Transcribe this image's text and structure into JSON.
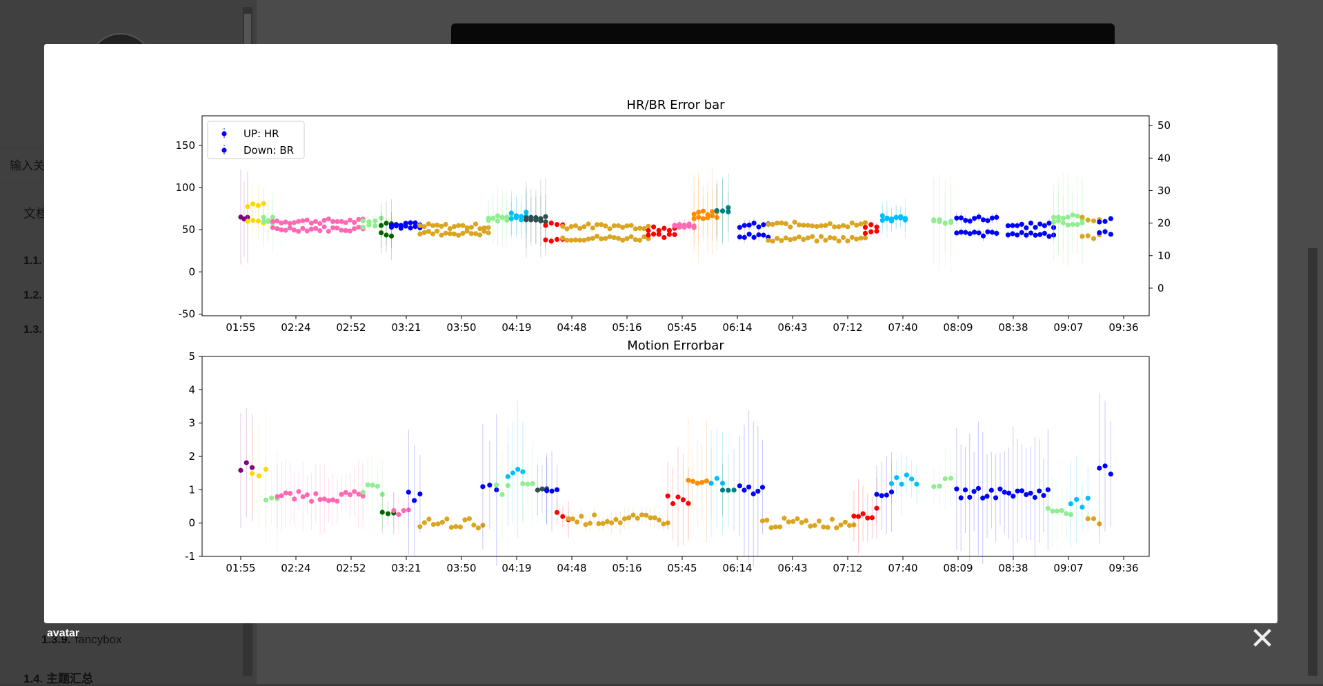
{
  "background": {
    "search_placeholder": "输入关",
    "doc_label": "文档",
    "toc": [
      {
        "label": "1.1."
      },
      {
        "label": "1.2."
      },
      {
        "label": "1.3."
      }
    ],
    "subitem": {
      "num": "1.3.9.",
      "label": "fancybox"
    },
    "bottom_item": {
      "num": "1.4.",
      "label": "主题汇总"
    }
  },
  "lightbox": {
    "caption": "avatar",
    "close_label": "✕"
  },
  "chart_data": [
    {
      "type": "scatter",
      "title": "HR/BR Error bar",
      "x_ticks": [
        "01:55",
        "02:24",
        "02:52",
        "03:21",
        "03:50",
        "04:19",
        "04:48",
        "05:16",
        "05:45",
        "06:14",
        "06:43",
        "07:12",
        "07:40",
        "08:09",
        "08:38",
        "09:07",
        "09:36"
      ],
      "y_ticks": [
        -50,
        0,
        50,
        100,
        150
      ],
      "y2_ticks": [
        0,
        10,
        20,
        30,
        40,
        50
      ],
      "ylim": [
        -52,
        185
      ],
      "y2lim": [
        -8.5,
        53
      ],
      "legend": {
        "position": "upper-left",
        "entries": [
          "UP: HR",
          "Down: BR"
        ]
      },
      "series_colors": [
        "#800080",
        "#ffd700",
        "#90ee90",
        "#ff69b4",
        "#006400",
        "#0000ff",
        "#daa520",
        "#00bfff",
        "#2f4f4f",
        "#ff0000",
        "#ff8c00",
        "#008080"
      ],
      "segments": [
        {
          "x": [
            1.98,
            2.04
          ],
          "hr": 65,
          "br": null,
          "color": "#800080",
          "err": 60
        },
        {
          "x": [
            2.04,
            2.18
          ],
          "hr": 80,
          "br": 60,
          "color": "#ffd700",
          "err": 25
        },
        {
          "x": [
            2.18,
            2.26
          ],
          "hr": 62,
          "br": 60,
          "color": "#90ee90",
          "err": 30
        },
        {
          "x": [
            2.26,
            3.05
          ],
          "hr": 60,
          "br": 51,
          "color": "#ff69b4",
          "err": 3
        },
        {
          "x": [
            3.05,
            3.21
          ],
          "hr": 62,
          "br": 55,
          "color": "#90ee90",
          "err": 12
        },
        {
          "x": [
            3.21,
            3.3
          ],
          "hr": 58,
          "br": 45,
          "color": "#006400",
          "err": 25
        },
        {
          "x": [
            3.3,
            3.55
          ],
          "hr": 58,
          "br": 52,
          "color": "#0000ff",
          "err": 4
        },
        {
          "x": [
            3.55,
            4.15
          ],
          "hr": 54,
          "br": 46,
          "color": "#daa520",
          "err": 3
        },
        {
          "x": [
            4.15,
            4.35
          ],
          "hr": 62,
          "br": 66,
          "color": "#90ee90",
          "err": 30
        },
        {
          "x": [
            4.35,
            4.48
          ],
          "hr": 68,
          "br": 64,
          "color": "#00bfff",
          "err": 25
        },
        {
          "x": [
            4.48,
            4.65
          ],
          "hr": 64,
          "br": 62,
          "color": "#2f4f4f",
          "err": 40
        },
        {
          "x": [
            4.65,
            4.8
          ],
          "hr": 56,
          "br": 38,
          "color": "#ff0000",
          "err": 5
        },
        {
          "x": [
            4.8,
            5.55
          ],
          "hr": 54,
          "br": 40,
          "color": "#daa520",
          "err": 3
        },
        {
          "x": [
            5.55,
            5.78
          ],
          "hr": 52,
          "br": 42,
          "color": "#ff0000",
          "err": 4
        },
        {
          "x": [
            5.78,
            5.95
          ],
          "hr": 55,
          "br": 56,
          "color": "#ff69b4",
          "err": 8
        },
        {
          "x": [
            5.95,
            6.15
          ],
          "hr": 70,
          "br": 66,
          "color": "#ff8c00",
          "err": 45
        },
        {
          "x": [
            6.15,
            6.25
          ],
          "hr": 75,
          "br": 70,
          "color": "#008080",
          "err": 40
        },
        {
          "x": [
            6.35,
            6.6
          ],
          "hr": 55,
          "br": 42,
          "color": "#0000ff",
          "err": 6
        },
        {
          "x": [
            6.6,
            7.45
          ],
          "hr": 56,
          "br": 39,
          "color": "#daa520",
          "err": 3
        },
        {
          "x": [
            7.45,
            7.55
          ],
          "hr": 55,
          "br": 48,
          "color": "#ff0000",
          "err": 6
        },
        {
          "x": [
            7.6,
            7.8
          ],
          "hr": 65,
          "br": 62,
          "color": "#00bfff",
          "err": 20
        },
        {
          "x": [
            8.05,
            8.2
          ],
          "hr": 60,
          "br": 60,
          "color": "#90ee90",
          "err": 50
        },
        {
          "x": [
            8.25,
            8.6
          ],
          "hr": 63,
          "br": 45,
          "color": "#0000ff",
          "err": 6
        },
        {
          "x": [
            8.7,
            9.1
          ],
          "hr": 55,
          "br": 45,
          "color": "#0000ff",
          "err": 5
        },
        {
          "x": [
            9.1,
            9.35
          ],
          "hr": 65,
          "br": 58,
          "color": "#90ee90",
          "err": 45
        },
        {
          "x": [
            9.35,
            9.5
          ],
          "hr": 62,
          "br": 42,
          "color": "#daa520",
          "err": 4
        },
        {
          "x": [
            9.5,
            9.6
          ],
          "hr": 62,
          "br": 45,
          "color": "#0000ff",
          "err": 4
        }
      ]
    },
    {
      "type": "scatter",
      "title": "Motion Errorbar",
      "x_ticks": [
        "01:55",
        "02:24",
        "02:52",
        "03:21",
        "03:50",
        "04:19",
        "04:48",
        "05:16",
        "05:45",
        "06:14",
        "06:43",
        "07:12",
        "07:40",
        "08:09",
        "08:38",
        "09:07",
        "09:36"
      ],
      "y_ticks": [
        -1,
        0,
        1,
        2,
        3,
        4,
        5
      ],
      "ylim": [
        -1,
        5
      ],
      "segments": [
        {
          "x": [
            1.98,
            2.08
          ],
          "y": 1.7,
          "color": "#800080",
          "err": 1.5
        },
        {
          "x": [
            2.08,
            2.2
          ],
          "y": 1.5,
          "color": "#ffd700",
          "err": 1.8
        },
        {
          "x": [
            2.2,
            2.3
          ],
          "y": 0.8,
          "color": "#90ee90",
          "err": 1.3
        },
        {
          "x": [
            2.3,
            3.05
          ],
          "y": 0.8,
          "color": "#ff69b4",
          "err": 0.9
        },
        {
          "x": [
            3.05,
            3.22
          ],
          "y": 1.0,
          "color": "#90ee90",
          "err": 0.9
        },
        {
          "x": [
            3.22,
            3.32
          ],
          "y": 0.4,
          "color": "#006400",
          "err": 0.6
        },
        {
          "x": [
            3.32,
            3.45
          ],
          "y": 0.3,
          "color": "#ff69b4",
          "err": 0.5
        },
        {
          "x": [
            3.45,
            3.55
          ],
          "y": 0.8,
          "color": "#0000ff",
          "err": 1.6
        },
        {
          "x": [
            3.55,
            4.1
          ],
          "y": 0.0,
          "color": "#daa520",
          "err": 0.1
        },
        {
          "x": [
            4.1,
            4.22
          ],
          "y": 1.0,
          "color": "#0000ff",
          "err": 2.0
        },
        {
          "x": [
            4.22,
            4.32
          ],
          "y": 1.0,
          "color": "#90ee90",
          "err": 1.2
        },
        {
          "x": [
            4.32,
            4.45
          ],
          "y": 1.5,
          "color": "#00bfff",
          "err": 2.0
        },
        {
          "x": [
            4.45,
            4.58
          ],
          "y": 1.1,
          "color": "#90ee90",
          "err": 1.2
        },
        {
          "x": [
            4.58,
            4.66
          ],
          "y": 0.9,
          "color": "#2f4f4f",
          "err": 1.0
        },
        {
          "x": [
            4.66,
            4.75
          ],
          "y": 1.0,
          "color": "#0000ff",
          "err": 1.1
        },
        {
          "x": [
            4.75,
            4.85
          ],
          "y": 0.2,
          "color": "#ff0000",
          "err": 0.5
        },
        {
          "x": [
            4.85,
            5.72
          ],
          "y": 0.1,
          "color": "#daa520",
          "err": 0.3
        },
        {
          "x": [
            5.72,
            5.9
          ],
          "y": 0.7,
          "color": "#ff0000",
          "err": 1.5
        },
        {
          "x": [
            5.9,
            6.1
          ],
          "y": 1.2,
          "color": "#ff8c00",
          "err": 1.6
        },
        {
          "x": [
            6.1,
            6.2
          ],
          "y": 1.2,
          "color": "#00bfff",
          "err": 1.5
        },
        {
          "x": [
            6.2,
            6.3
          ],
          "y": 0.9,
          "color": "#008080",
          "err": 1.3
        },
        {
          "x": [
            6.35,
            6.55
          ],
          "y": 1.0,
          "color": "#0000ff",
          "err": 2.0
        },
        {
          "x": [
            6.55,
            7.35
          ],
          "y": 0.0,
          "color": "#daa520",
          "err": 0.1
        },
        {
          "x": [
            7.35,
            7.55
          ],
          "y": 0.3,
          "color": "#ff0000",
          "err": 1.0
        },
        {
          "x": [
            7.55,
            7.68
          ],
          "y": 0.9,
          "color": "#0000ff",
          "err": 1.2
        },
        {
          "x": [
            7.68,
            7.9
          ],
          "y": 1.3,
          "color": "#00bfff",
          "err": 0.8
        },
        {
          "x": [
            8.05,
            8.2
          ],
          "y": 1.2,
          "color": "#90ee90",
          "err": 0.8
        },
        {
          "x": [
            8.25,
            9.05
          ],
          "y": 0.9,
          "color": "#0000ff",
          "err": 1.8
        },
        {
          "x": [
            9.05,
            9.25
          ],
          "y": 0.4,
          "color": "#90ee90",
          "err": 0.9
        },
        {
          "x": [
            9.25,
            9.4
          ],
          "y": 0.6,
          "color": "#00bfff",
          "err": 1.2
        },
        {
          "x": [
            9.4,
            9.5
          ],
          "y": 0.0,
          "color": "#daa520",
          "err": 0.2
        },
        {
          "x": [
            9.5,
            9.6
          ],
          "y": 1.6,
          "color": "#0000ff",
          "err": 2.5
        }
      ]
    }
  ]
}
